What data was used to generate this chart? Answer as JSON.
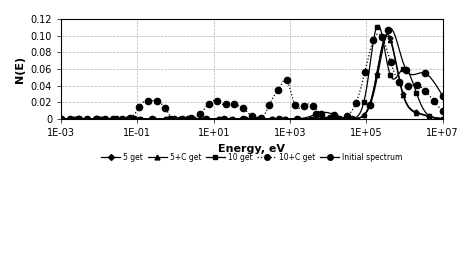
{
  "title": "",
  "xlabel": "Energy, eV",
  "ylabel": "N(E)",
  "xlim": [
    0.001,
    10000000.0
  ],
  "ylim": [
    0,
    0.12
  ],
  "yticks": [
    0,
    0.02,
    0.04,
    0.06,
    0.08,
    0.1,
    0.12
  ],
  "xtick_labels": [
    "1E-03",
    "1E-01",
    "1E+01",
    "1E+03",
    "1E+05",
    "1E+07"
  ],
  "grid_color": "#aaaaaa",
  "background_color": "#ffffff",
  "legend_entries": [
    "5 get",
    "5+C get",
    "10 get",
    "10+C get",
    "Initial spectrum"
  ],
  "line_color": "black"
}
